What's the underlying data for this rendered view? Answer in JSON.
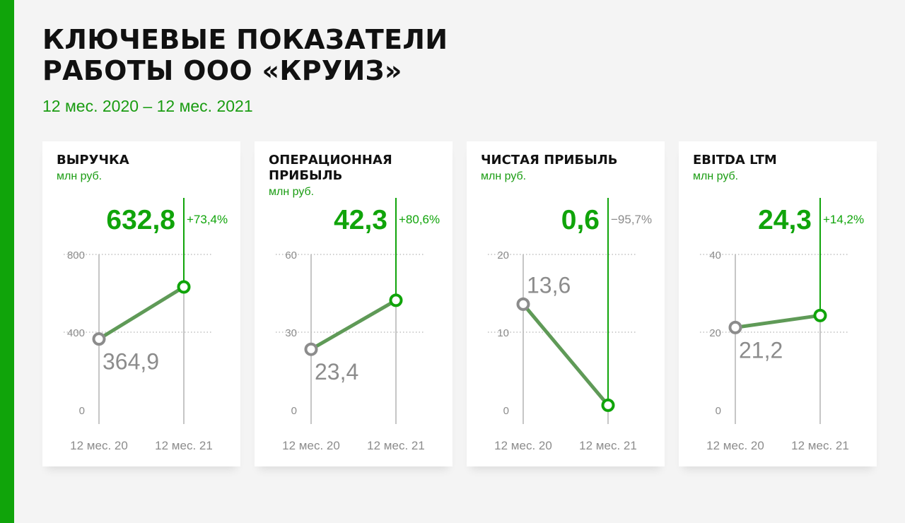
{
  "header": {
    "title": "КЛЮЧЕВЫЕ ПОКАЗАТЕЛИ РАБОТЫ ООО «КРУИЗ»",
    "period": "12 мес. 2020 – 12 мес. 2021"
  },
  "colors": {
    "accent": "#10a40a",
    "accent_text": "#1a9c12",
    "line": "#5f9a57",
    "old_marker": "#8c8c8c",
    "axis": "#b3b3b3",
    "tick_label": "#8c8c8c"
  },
  "chart_data": [
    {
      "type": "line",
      "title": "ВЫРУЧКА",
      "unit": "млн руб.",
      "categories": [
        "12 мес. 20",
        "12 мес. 21"
      ],
      "values": [
        364.9,
        632.8
      ],
      "value_labels": [
        "364,9",
        "632,8"
      ],
      "change": "+73,4%",
      "change_positive": true,
      "ylim": [
        0,
        800
      ],
      "yticks": [
        0,
        400,
        800
      ],
      "ytick_labels": [
        "0",
        "400",
        "800"
      ],
      "grid": true
    },
    {
      "type": "line",
      "title": "ОПЕРАЦИОННАЯ ПРИБЫЛЬ",
      "unit": "млн руб.",
      "categories": [
        "12 мес. 20",
        "12 мес. 21"
      ],
      "values": [
        23.4,
        42.3
      ],
      "value_labels": [
        "23,4",
        "42,3"
      ],
      "change": "+80,6%",
      "change_positive": true,
      "ylim": [
        0,
        60
      ],
      "yticks": [
        0,
        30,
        60
      ],
      "ytick_labels": [
        "0",
        "30",
        "60"
      ],
      "grid": true
    },
    {
      "type": "line",
      "title": "ЧИСТАЯ ПРИБЫЛЬ",
      "unit": "млн руб.",
      "categories": [
        "12 мес. 20",
        "12 мес. 21"
      ],
      "values": [
        13.6,
        0.6
      ],
      "value_labels": [
        "13,6",
        "0,6"
      ],
      "change": "−95,7%",
      "change_positive": false,
      "ylim": [
        0,
        20
      ],
      "yticks": [
        0,
        10,
        20
      ],
      "ytick_labels": [
        "0",
        "10",
        "20"
      ],
      "grid": true
    },
    {
      "type": "line",
      "title": "EBITDA LTM",
      "unit": "млн руб.",
      "categories": [
        "12 мес. 20",
        "12 мес. 21"
      ],
      "values": [
        21.2,
        24.3
      ],
      "value_labels": [
        "21,2",
        "24,3"
      ],
      "change": "+14,2%",
      "change_positive": true,
      "ylim": [
        0,
        40
      ],
      "yticks": [
        0,
        20,
        40
      ],
      "ytick_labels": [
        "0",
        "20",
        "40"
      ],
      "grid": true
    }
  ]
}
